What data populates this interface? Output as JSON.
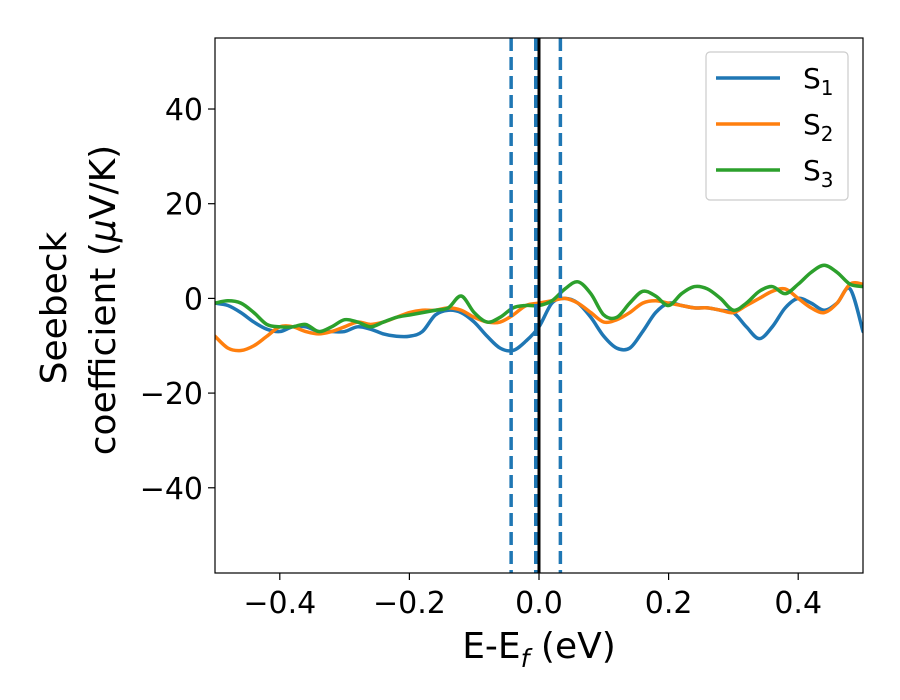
{
  "chart_data": {
    "type": "line",
    "xlabel": "E-E",
    "xlabel_sub": "f",
    "xlabel_unit": " (eV)",
    "ylabel_line1": "Seebeck",
    "ylabel_line2": "coefficient  (",
    "ylabel_mu": "μ",
    "ylabel_line2_end": "V/K)",
    "xlim": [
      -0.5,
      0.5
    ],
    "ylim": [
      -58,
      55
    ],
    "x_ticks": [
      -0.4,
      -0.2,
      0.0,
      0.2,
      0.4
    ],
    "x_tick_labels": [
      "−0.4",
      "−0.2",
      "0.0",
      "0.2",
      "0.4"
    ],
    "y_ticks": [
      -40,
      -20,
      0,
      20,
      40
    ],
    "y_tick_labels": [
      "−40",
      "−20",
      "0",
      "20",
      "40"
    ],
    "grid": false,
    "legend_position": "top-right",
    "vlines": [
      {
        "x": -0.043,
        "style": "dashed",
        "color": "#1f77b4"
      },
      {
        "x": -0.005,
        "style": "dashed",
        "color": "#1f77b4"
      },
      {
        "x": 0.0,
        "style": "solid",
        "color": "#000000"
      },
      {
        "x": 0.033,
        "style": "dashed",
        "color": "#1f77b4"
      }
    ],
    "series": [
      {
        "name": "S",
        "sub": "1",
        "color": "#1f77b4",
        "x": [
          -0.5,
          -0.48,
          -0.46,
          -0.44,
          -0.42,
          -0.4,
          -0.38,
          -0.36,
          -0.34,
          -0.32,
          -0.3,
          -0.28,
          -0.26,
          -0.24,
          -0.22,
          -0.2,
          -0.18,
          -0.16,
          -0.14,
          -0.12,
          -0.1,
          -0.08,
          -0.06,
          -0.04,
          -0.02,
          0.0,
          0.02,
          0.04,
          0.06,
          0.08,
          0.1,
          0.12,
          0.14,
          0.16,
          0.18,
          0.2,
          0.22,
          0.24,
          0.26,
          0.28,
          0.3,
          0.32,
          0.34,
          0.36,
          0.38,
          0.4,
          0.42,
          0.44,
          0.46,
          0.48,
          0.5
        ],
        "y": [
          -1,
          -1.5,
          -3,
          -5,
          -6.5,
          -7,
          -6,
          -6,
          -7,
          -7,
          -7,
          -6,
          -6.5,
          -7.5,
          -8,
          -8,
          -7,
          -3.5,
          -2.5,
          -3,
          -5,
          -8,
          -10.5,
          -11,
          -9,
          -6,
          -1,
          0,
          -1,
          -4,
          -8,
          -10.5,
          -10.5,
          -7,
          -3,
          -1,
          -1.5,
          -2,
          -2,
          -2.5,
          -3,
          -6,
          -8.5,
          -6,
          -2,
          0,
          -1,
          -2.5,
          -1,
          2,
          -7
        ]
      },
      {
        "name": "S",
        "sub": "2",
        "color": "#ff7f0e",
        "x": [
          -0.5,
          -0.48,
          -0.46,
          -0.44,
          -0.42,
          -0.4,
          -0.38,
          -0.36,
          -0.34,
          -0.32,
          -0.3,
          -0.28,
          -0.26,
          -0.24,
          -0.22,
          -0.2,
          -0.18,
          -0.16,
          -0.14,
          -0.12,
          -0.1,
          -0.08,
          -0.06,
          -0.04,
          -0.02,
          0.0,
          0.02,
          0.04,
          0.06,
          0.08,
          0.1,
          0.12,
          0.14,
          0.16,
          0.18,
          0.2,
          0.22,
          0.24,
          0.26,
          0.28,
          0.3,
          0.32,
          0.34,
          0.36,
          0.38,
          0.4,
          0.42,
          0.44,
          0.46,
          0.48,
          0.5
        ],
        "y": [
          -8,
          -10.5,
          -11,
          -10,
          -8,
          -6,
          -6,
          -7,
          -7.5,
          -7,
          -6,
          -5,
          -5.5,
          -5,
          -4,
          -3,
          -2.5,
          -2.5,
          -2,
          -2.5,
          -4,
          -5,
          -5,
          -3.5,
          -1.5,
          -1,
          -0.5,
          0,
          -1,
          -3,
          -5,
          -4.5,
          -3,
          -1,
          -0.5,
          -1,
          -1.5,
          -2,
          -2,
          -2.5,
          -3,
          -1.5,
          0,
          1.5,
          2,
          0,
          -2,
          -3,
          -1,
          3,
          3
        ]
      },
      {
        "name": "S",
        "sub": "3",
        "color": "#2ca02c",
        "x": [
          -0.5,
          -0.48,
          -0.46,
          -0.44,
          -0.42,
          -0.4,
          -0.38,
          -0.36,
          -0.34,
          -0.32,
          -0.3,
          -0.28,
          -0.26,
          -0.24,
          -0.22,
          -0.2,
          -0.18,
          -0.16,
          -0.14,
          -0.12,
          -0.1,
          -0.08,
          -0.06,
          -0.04,
          -0.02,
          0.0,
          0.02,
          0.04,
          0.06,
          0.08,
          0.1,
          0.12,
          0.14,
          0.16,
          0.18,
          0.2,
          0.22,
          0.24,
          0.26,
          0.28,
          0.3,
          0.32,
          0.34,
          0.36,
          0.38,
          0.4,
          0.42,
          0.44,
          0.46,
          0.48,
          0.5
        ],
        "y": [
          -1,
          -0.5,
          -1,
          -3,
          -5.5,
          -6,
          -6,
          -5.5,
          -7,
          -6,
          -4.5,
          -5,
          -6,
          -5,
          -4,
          -3.5,
          -3,
          -2.5,
          -2,
          0.5,
          -3,
          -5,
          -4,
          -2,
          -1.5,
          -1.5,
          -0.5,
          2,
          3.5,
          1,
          -3.5,
          -4,
          -1,
          1.5,
          0.5,
          -1.5,
          1,
          2.5,
          2,
          0,
          -2.5,
          -1,
          1.5,
          2.5,
          1,
          3,
          5.5,
          7,
          5.5,
          3,
          2.5
        ]
      }
    ]
  }
}
